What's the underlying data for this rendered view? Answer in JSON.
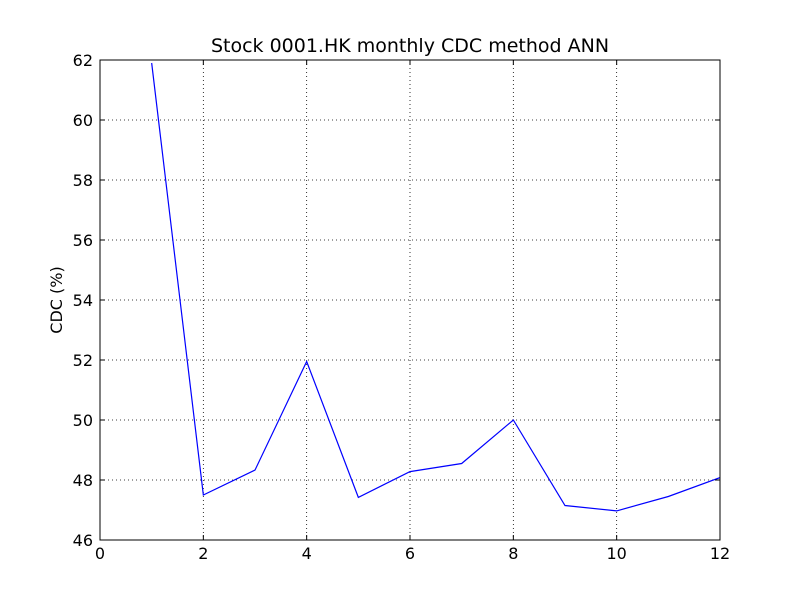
{
  "chart_data": {
    "type": "line",
    "title": "Stock 0001.HK monthly CDC method ANN",
    "xlabel": "",
    "ylabel": "CDC (%)",
    "xlim": [
      0,
      12
    ],
    "ylim": [
      46,
      62
    ],
    "xticks": [
      0,
      2,
      4,
      6,
      8,
      10,
      12
    ],
    "yticks": [
      46,
      48,
      50,
      52,
      54,
      56,
      58,
      60,
      62
    ],
    "grid": true,
    "series": [
      {
        "color": "#0000ff",
        "x": [
          1,
          2,
          3,
          4,
          5,
          6,
          7,
          8,
          9,
          10,
          11,
          12
        ],
        "y": [
          61.9,
          47.5,
          48.33,
          51.95,
          47.42,
          48.28,
          48.55,
          50.0,
          47.15,
          46.97,
          47.45,
          48.08
        ]
      }
    ]
  }
}
